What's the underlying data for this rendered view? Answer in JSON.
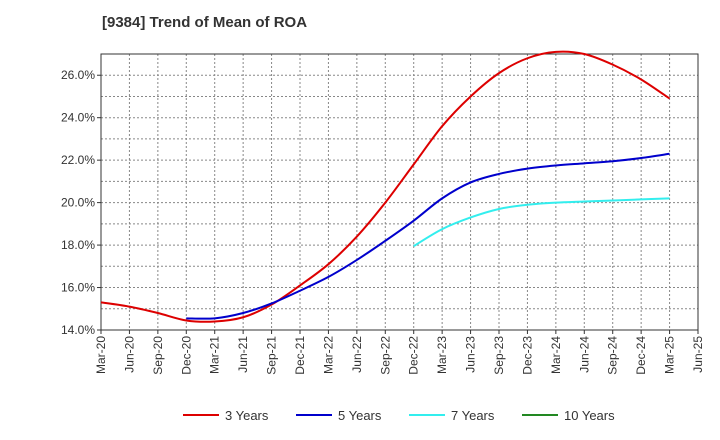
{
  "chart_data": {
    "type": "line",
    "title": "[9384]  Trend of Mean of ROA",
    "xlabel": "",
    "ylabel": "",
    "x": [
      "Mar-20",
      "Jun-20",
      "Sep-20",
      "Dec-20",
      "Mar-21",
      "Jun-21",
      "Sep-21",
      "Dec-21",
      "Mar-22",
      "Jun-22",
      "Sep-22",
      "Dec-22",
      "Mar-23",
      "Jun-23",
      "Sep-23",
      "Dec-23",
      "Mar-24",
      "Jun-24",
      "Sep-24",
      "Dec-24",
      "Mar-25",
      "Jun-25"
    ],
    "ylim": [
      14.0,
      27.0
    ],
    "yticks": [
      14.0,
      16.0,
      18.0,
      20.0,
      22.0,
      24.0,
      26.0
    ],
    "ytick_labels": [
      "14.0%",
      "16.0%",
      "18.0%",
      "20.0%",
      "22.0%",
      "24.0%",
      "26.0%"
    ],
    "grid": true,
    "legend_position": "bottom",
    "series": [
      {
        "name": "3 Years",
        "color": "#dd0000",
        "values": [
          15.3,
          15.1,
          14.8,
          14.45,
          14.4,
          14.6,
          15.2,
          16.1,
          17.1,
          18.4,
          20.0,
          21.8,
          23.6,
          25.0,
          26.1,
          26.8,
          27.1,
          27.0,
          26.5,
          25.8,
          24.9,
          null
        ]
      },
      {
        "name": "5 Years",
        "color": "#0000cc",
        "values": [
          null,
          null,
          null,
          14.55,
          14.55,
          14.8,
          15.25,
          15.85,
          16.5,
          17.3,
          18.2,
          19.15,
          20.2,
          20.95,
          21.35,
          21.6,
          21.75,
          21.85,
          21.95,
          22.1,
          22.3,
          null
        ]
      },
      {
        "name": "7 Years",
        "color": "#33eeee",
        "values": [
          null,
          null,
          null,
          null,
          null,
          null,
          null,
          null,
          null,
          null,
          null,
          17.95,
          18.75,
          19.3,
          19.7,
          19.9,
          20.0,
          20.05,
          20.1,
          20.15,
          20.2,
          null
        ]
      },
      {
        "name": "10 Years",
        "color": "#228822",
        "values": [
          null,
          null,
          null,
          null,
          null,
          null,
          null,
          null,
          null,
          null,
          null,
          null,
          null,
          null,
          null,
          null,
          null,
          null,
          null,
          null,
          null,
          null
        ]
      }
    ]
  }
}
